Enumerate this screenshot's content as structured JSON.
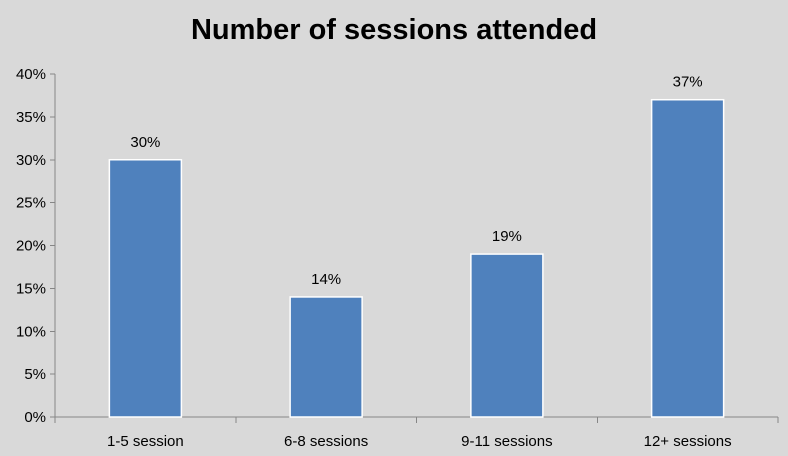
{
  "chart_data": {
    "type": "bar",
    "title": "Number of sessions attended",
    "categories": [
      "1-5 session",
      "6-8 sessions",
      "9-11 sessions",
      "12+ sessions"
    ],
    "values": [
      30,
      14,
      19,
      37
    ],
    "data_labels": [
      "30%",
      "14%",
      "19%",
      "37%"
    ],
    "xlabel": "",
    "ylabel": "",
    "ylim": [
      0,
      40
    ],
    "yticks": [
      0,
      5,
      10,
      15,
      20,
      25,
      30,
      35,
      40
    ],
    "ytick_labels": [
      "0%",
      "5%",
      "10%",
      "15%",
      "20%",
      "25%",
      "30%",
      "35%",
      "40%"
    ],
    "grid": false,
    "legend": "none",
    "bar_color": "#4f81bd",
    "bar_border_color": "#ffffff",
    "background_color": "#d9d9d9",
    "axis_color": "#868686"
  }
}
